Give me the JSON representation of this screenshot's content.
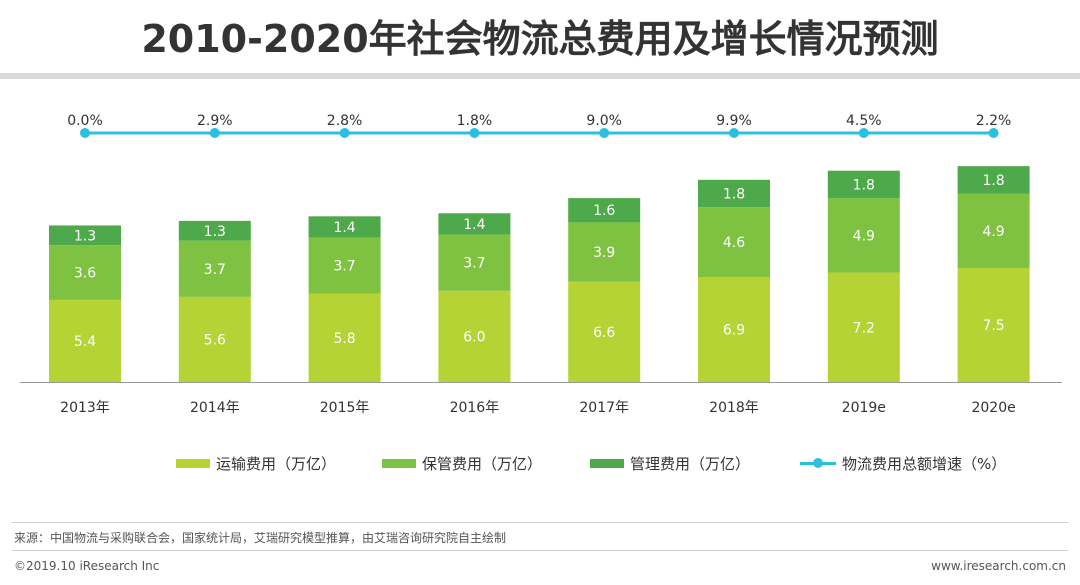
{
  "title": "2010-2020年社会物流总费用及增长情况预测",
  "colors": {
    "transport": "#b5d334",
    "storage": "#7fc241",
    "management": "#4ea94a",
    "growth_line": "#2bbfe0",
    "axis": "#999999",
    "label_light": "#ffffff"
  },
  "chart_data": {
    "type": "bar",
    "stacked": true,
    "categories": [
      "2013年",
      "2014年",
      "2015年",
      "2016年",
      "2017年",
      "2018年",
      "2019e",
      "2020e"
    ],
    "series": [
      {
        "name": "运输费用（万亿）",
        "values": [
          5.4,
          5.6,
          5.8,
          6.0,
          6.6,
          6.9,
          7.2,
          7.5
        ]
      },
      {
        "name": "保管费用（万亿）",
        "values": [
          3.6,
          3.7,
          3.7,
          3.7,
          3.9,
          4.6,
          4.9,
          4.9
        ]
      },
      {
        "name": "管理费用（万亿）",
        "values": [
          1.3,
          1.3,
          1.4,
          1.4,
          1.6,
          1.8,
          1.8,
          1.8
        ]
      }
    ],
    "line_series": {
      "name": "物流费用总额增速（%）",
      "values": [
        0.0,
        2.9,
        2.8,
        1.8,
        9.0,
        9.9,
        4.5,
        2.2
      ],
      "labels": [
        "0.0%",
        "2.9%",
        "2.8%",
        "1.8%",
        "9.0%",
        "9.9%",
        "4.5%",
        "2.2%"
      ]
    },
    "legend_position": "bottom"
  },
  "footer": {
    "source": "来源：中国物流与采购联合会，国家统计局，艾瑞研究模型推算，由艾瑞咨询研究院自主绘制",
    "copyright": "©2019.10 iResearch Inc",
    "website": "www.iresearch.com.cn"
  }
}
